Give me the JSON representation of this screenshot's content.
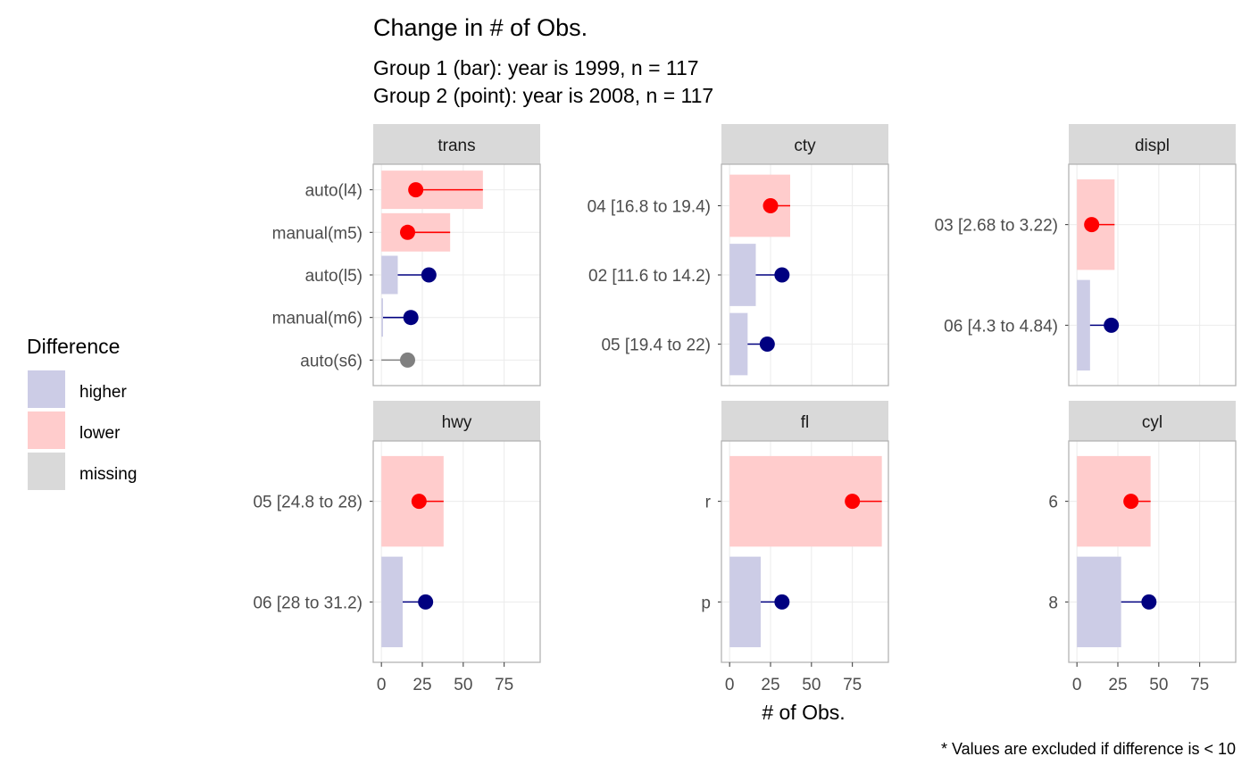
{
  "chart_data": {
    "type": "bar",
    "title": "Change in # of Obs.",
    "subtitle_lines": [
      "Group 1 (bar): year is 1999, n = 117",
      "Group 2 (point): year is 2008, n = 117"
    ],
    "xlabel": "# of Obs.",
    "caption": "* Values are excluded if difference is < 10",
    "x_ticks": [
      0,
      25,
      50,
      75
    ],
    "xlim": [
      -5,
      97
    ],
    "legend": {
      "title": "Difference",
      "position": "left",
      "entries": [
        {
          "label": "higher",
          "color": "#cccce6"
        },
        {
          "label": "lower",
          "color": "#ffcccc"
        },
        {
          "label": "missing",
          "color": "#d9d9d9"
        }
      ]
    },
    "colors": {
      "higher_fill": "#cccce6",
      "lower_fill": "#ffcccc",
      "higher_point": "#000080",
      "lower_point": "#ff0000",
      "missing_point": "#808080",
      "strip_bg": "#d9d9d9",
      "panel_border": "#b3b3b3"
    },
    "panels": [
      {
        "name": "trans",
        "rows": [
          {
            "label": "auto(l4)",
            "bar": 62,
            "point": 21,
            "diff": "lower"
          },
          {
            "label": "manual(m5)",
            "bar": 42,
            "point": 16,
            "diff": "lower"
          },
          {
            "label": "auto(l5)",
            "bar": 10,
            "point": 29,
            "diff": "higher"
          },
          {
            "label": "manual(m6)",
            "bar": 1,
            "point": 18,
            "diff": "higher"
          },
          {
            "label": "auto(s6)",
            "bar": 0,
            "point": 16,
            "diff": "missing"
          }
        ]
      },
      {
        "name": "cty",
        "rows": [
          {
            "label": "04 [16.8 to 19.4)",
            "bar": 37,
            "point": 25,
            "diff": "lower"
          },
          {
            "label": "02 [11.6 to 14.2)",
            "bar": 16,
            "point": 32,
            "diff": "higher"
          },
          {
            "label": "05 [19.4 to 22)",
            "bar": 11,
            "point": 23,
            "diff": "higher"
          }
        ]
      },
      {
        "name": "displ",
        "rows": [
          {
            "label": "03 [2.68 to 3.22)",
            "bar": 23,
            "point": 9,
            "diff": "lower"
          },
          {
            "label": "06 [4.3 to 4.84)",
            "bar": 8,
            "point": 21,
            "diff": "higher"
          }
        ]
      },
      {
        "name": "hwy",
        "rows": [
          {
            "label": "05 [24.8 to 28)",
            "bar": 38,
            "point": 23,
            "diff": "lower"
          },
          {
            "label": "06 [28 to 31.2)",
            "bar": 13,
            "point": 27,
            "diff": "higher"
          }
        ]
      },
      {
        "name": "fl",
        "rows": [
          {
            "label": "r",
            "bar": 93,
            "point": 75,
            "diff": "lower"
          },
          {
            "label": "p",
            "bar": 19,
            "point": 32,
            "diff": "higher"
          }
        ]
      },
      {
        "name": "cyl",
        "rows": [
          {
            "label": "6",
            "bar": 45,
            "point": 33,
            "diff": "lower"
          },
          {
            "label": "8",
            "bar": 27,
            "point": 44,
            "diff": "higher"
          }
        ]
      }
    ]
  }
}
